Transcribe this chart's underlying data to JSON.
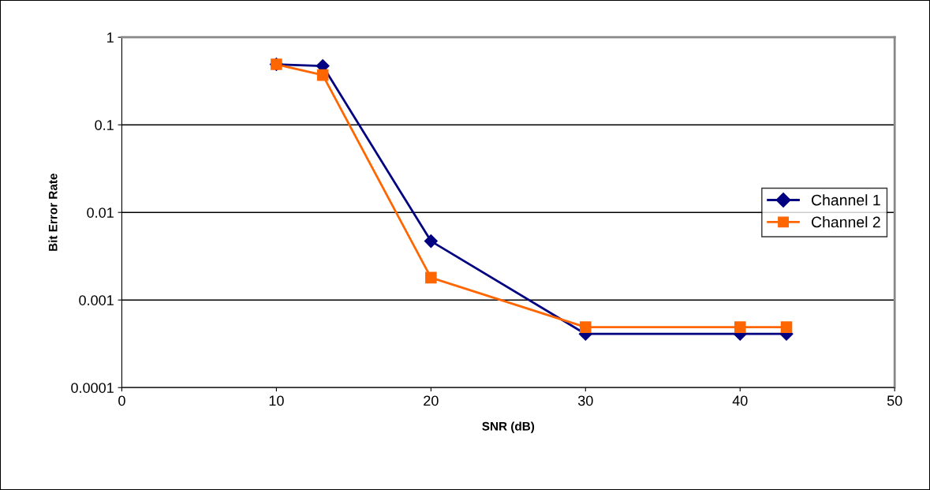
{
  "chart_data": {
    "type": "line",
    "xlabel": "SNR (dB)",
    "ylabel": "Bit Error Rate",
    "log": "y",
    "x": [
      10,
      13,
      20,
      30,
      40,
      43
    ],
    "series": [
      {
        "name": "Channel 1",
        "color": "#000080",
        "marker": "diamond",
        "values": [
          0.49,
          0.47,
          0.0047,
          0.00041,
          0.00041,
          0.00041
        ]
      },
      {
        "name": "Channel 2",
        "color": "#ff6600",
        "marker": "square",
        "values": [
          0.49,
          0.37,
          0.0018,
          0.00049,
          0.00049,
          0.00049
        ]
      }
    ],
    "xlim": [
      0,
      50
    ],
    "xticks": [
      0,
      10,
      20,
      30,
      40,
      50
    ],
    "ylim": [
      0.0001,
      1
    ],
    "yticks": [
      0.0001,
      0.001,
      0.01,
      0.1,
      1
    ],
    "grid": "y",
    "legend": "right"
  }
}
